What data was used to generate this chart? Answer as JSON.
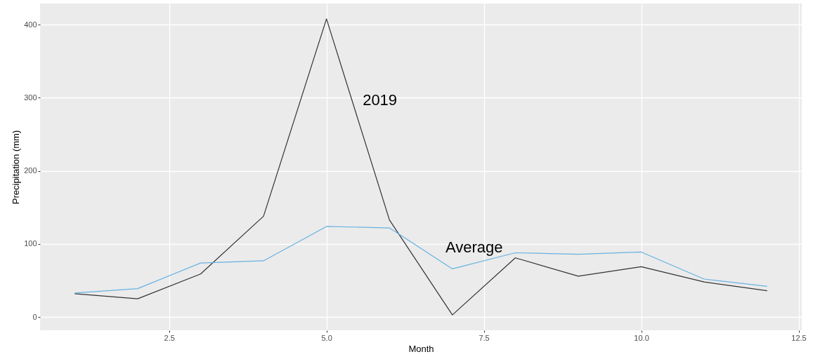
{
  "chart_data": {
    "type": "line",
    "xlabel": "Month",
    "ylabel": "Precipitation (mm)",
    "x": [
      1,
      2,
      3,
      4,
      5,
      6,
      7,
      8,
      9,
      10,
      11,
      12
    ],
    "series": [
      {
        "name": "2019",
        "color": "#333333",
        "values": [
          32,
          25,
          59,
          138,
          408,
          133,
          3,
          81,
          56,
          69,
          48,
          36
        ]
      },
      {
        "name": "Average",
        "color": "#66b2e0",
        "values": [
          33,
          39,
          74,
          77,
          124,
          122,
          66,
          88,
          86,
          89,
          52,
          42
        ]
      }
    ],
    "xlim": [
      0.45,
      12.55
    ],
    "xticks": [
      2.5,
      {
        "value": 5,
        "label": "5.0"
      },
      7.5,
      {
        "value": 10,
        "label": "10.0"
      },
      12.5
    ],
    "ylim": [
      -18,
      429
    ],
    "yticks": [
      0,
      100,
      200,
      300,
      400
    ],
    "grid": true,
    "marker": "none",
    "line_style": "solid"
  }
}
